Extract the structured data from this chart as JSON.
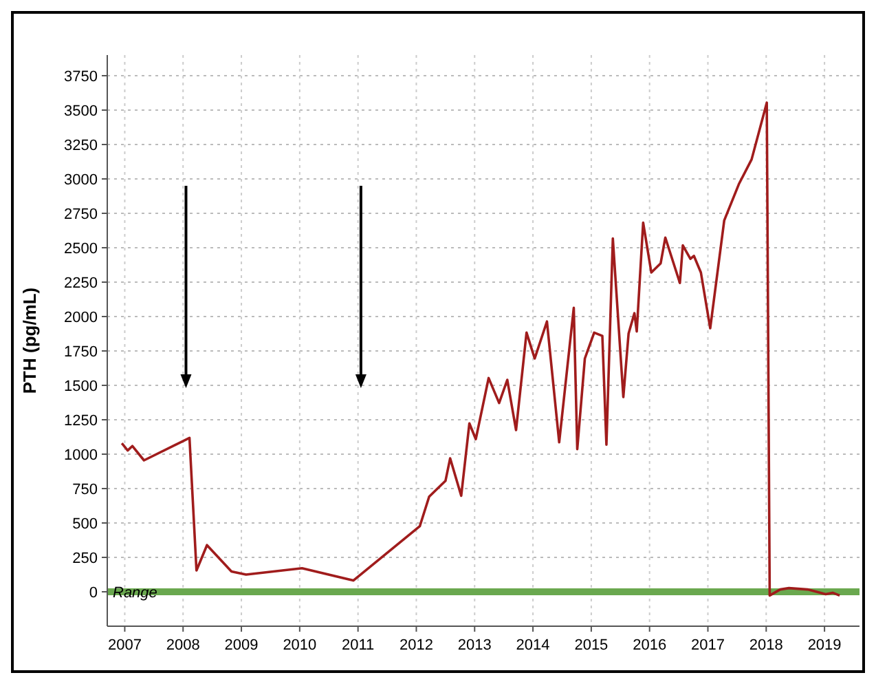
{
  "chart_data": {
    "type": "line",
    "ylabel": "PTH (pg/mL)",
    "x": [
      2006.95,
      2007.05,
      2007.13,
      2007.33,
      2008.11,
      2008.23,
      2008.41,
      2008.83,
      2009.08,
      2010.04,
      2010.92,
      2012.06,
      2012.22,
      2012.5,
      2012.58,
      2012.77,
      2012.91,
      2013.02,
      2013.24,
      2013.42,
      2013.56,
      2013.71,
      2013.89,
      2014.03,
      2014.24,
      2014.45,
      2014.7,
      2014.76,
      2014.89,
      2015.05,
      2015.19,
      2015.26,
      2015.37,
      2015.55,
      2015.64,
      2015.74,
      2015.78,
      2015.89,
      2016.03,
      2016.19,
      2016.27,
      2016.52,
      2016.57,
      2016.7,
      2016.76,
      2016.88,
      2017.04,
      2017.28,
      2017.53,
      2017.75,
      2018.01,
      2018.06,
      2018.24,
      2018.39,
      2018.71,
      2019.02,
      2019.14,
      2019.26
    ],
    "series": [
      {
        "color": "#a01c1c",
        "values": [
          1079,
          1027,
          1059,
          955,
          1118,
          155,
          339,
          148,
          125,
          171,
          82,
          477,
          691,
          806,
          970,
          698,
          1224,
          1109,
          1553,
          1372,
          1540,
          1175,
          1883,
          1695,
          1964,
          1086,
          2063,
          1037,
          1695,
          1883,
          1859,
          1069,
          2567,
          1415,
          1876,
          2024,
          1892,
          2682,
          2320,
          2386,
          2574,
          2244,
          2517,
          2419,
          2441,
          2320,
          1915,
          2698,
          2961,
          3142,
          3554,
          -27,
          17,
          27,
          17,
          -17,
          -7,
          -27
        ]
      }
    ],
    "xlim": [
      2006.7,
      2019.6
    ],
    "xticks": [
      2007,
      2008,
      2009,
      2010,
      2011,
      2012,
      2013,
      2014,
      2015,
      2016,
      2017,
      2018,
      2019
    ],
    "ylim": [
      -250,
      3900
    ],
    "yticks": [
      0,
      250,
      500,
      750,
      1000,
      1250,
      1500,
      1750,
      2000,
      2250,
      2500,
      2750,
      3000,
      3250,
      3500,
      3750
    ],
    "grid": true,
    "line_style": "solid",
    "marker": "none",
    "bands": [
      {
        "axis": "y",
        "from": -25,
        "to": 25,
        "label": "Range",
        "color": "#6aa84f"
      }
    ]
  }
}
